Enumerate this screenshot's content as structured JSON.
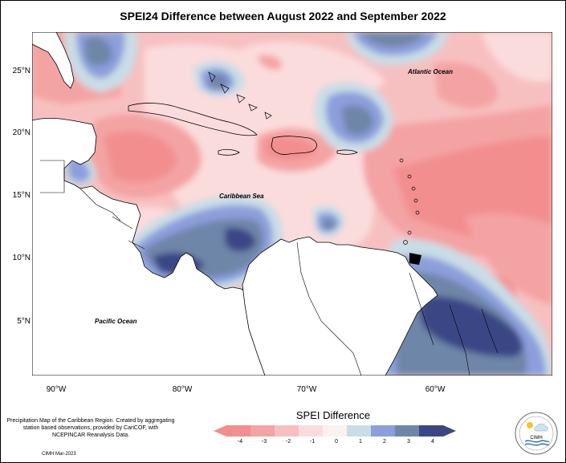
{
  "title": "SPEI24 Difference between August 2022 and September 2022",
  "lat_labels": [
    "25°N",
    "20°N",
    "15°N",
    "10°N",
    "5°N"
  ],
  "lon_labels": [
    "90°W",
    "80°W",
    "70°W",
    "60°W"
  ],
  "places": {
    "atlantic": "Atlantic Ocean",
    "caribbean": "Caribbean Sea",
    "pacific": "Pacific Ocean"
  },
  "credit": "Precipitation Map of the Caribbean Region. Created by aggregating station based observations, provided by CariCOF, with NCEPINCAR Reanalysis Data.",
  "cimh_date": "CIMH Mar-2023",
  "legend": {
    "title": "SPEI Difference",
    "ticks": [
      "-4",
      "-3",
      "-2",
      "-1",
      "0",
      "1",
      "2",
      "3",
      "4"
    ],
    "colors": [
      "#f28e8e",
      "#f4a3a3",
      "#f7c0c0",
      "#fbdcdc",
      "#fdf0f0",
      "#c9dde6",
      "#8c9fdc",
      "#6e86a8",
      "#3b4785"
    ]
  },
  "logo_text": "CIMH"
}
